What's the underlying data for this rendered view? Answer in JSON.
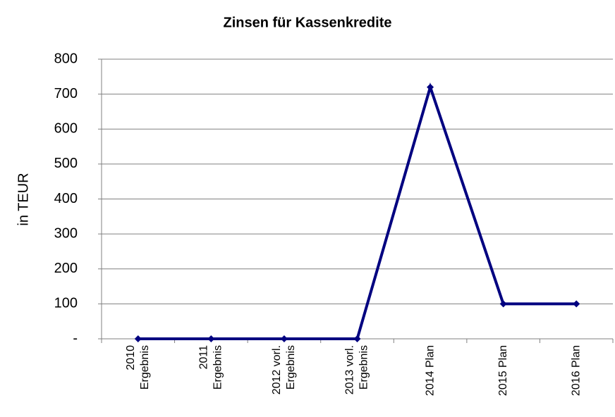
{
  "chart_data": {
    "type": "line",
    "title": "Zinsen für Kassenkredite",
    "y_label": "in TEUR",
    "categories": [
      [
        "2010",
        "Ergebnis"
      ],
      [
        "2011",
        "Ergebnis"
      ],
      [
        "2012 vorl.",
        "Ergebnis"
      ],
      [
        "2013 vorl.",
        "Ergebnis"
      ],
      [
        "2014 Plan"
      ],
      [
        "2015 Plan"
      ],
      [
        "2016 Plan"
      ]
    ],
    "values": [
      0,
      0,
      0,
      0,
      720,
      100,
      100
    ],
    "color": "#000080",
    "ylim": [
      0,
      800
    ],
    "yticks": [
      {
        "value": 0,
        "label": "-"
      },
      100,
      200,
      300,
      400,
      500,
      600,
      700,
      800
    ],
    "grid": true
  }
}
